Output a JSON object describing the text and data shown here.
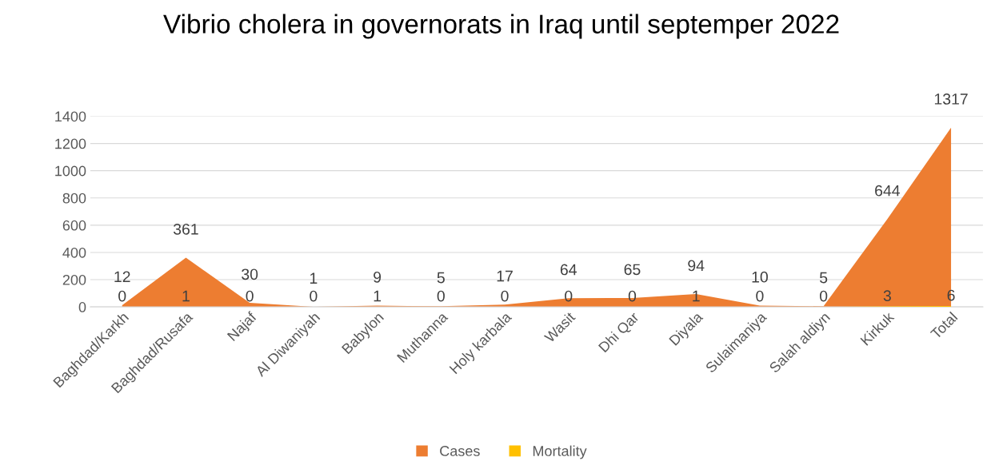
{
  "chart_data": {
    "type": "area",
    "title": "Vibrio cholera in governorats in Iraq until septemper 2022",
    "categories": [
      "Baghdad/Karkh",
      "Baghdad/Rusafa",
      "Najaf",
      "Al Diwaniyah",
      "Babylon",
      "Muthanna",
      "Holy karbala",
      "Wasit",
      "Dhi Qar",
      "Diyala",
      "Sulaimaniya",
      "Salah aldiyn",
      "Kirkuk",
      "Total"
    ],
    "series": [
      {
        "name": "Cases",
        "color": "#ed7d31",
        "values": [
          12,
          361,
          30,
          1,
          9,
          5,
          17,
          64,
          65,
          94,
          10,
          5,
          644,
          1317
        ]
      },
      {
        "name": "Mortality",
        "color": "#ffc000",
        "values": [
          0,
          1,
          0,
          0,
          1,
          0,
          0,
          0,
          0,
          1,
          0,
          0,
          3,
          6
        ]
      }
    ],
    "ylim": [
      0,
      1400
    ],
    "yticks": [
      0,
      200,
      400,
      600,
      800,
      1000,
      1200,
      1400
    ],
    "grid": "y",
    "legend": "bottom",
    "data_labels": true
  }
}
